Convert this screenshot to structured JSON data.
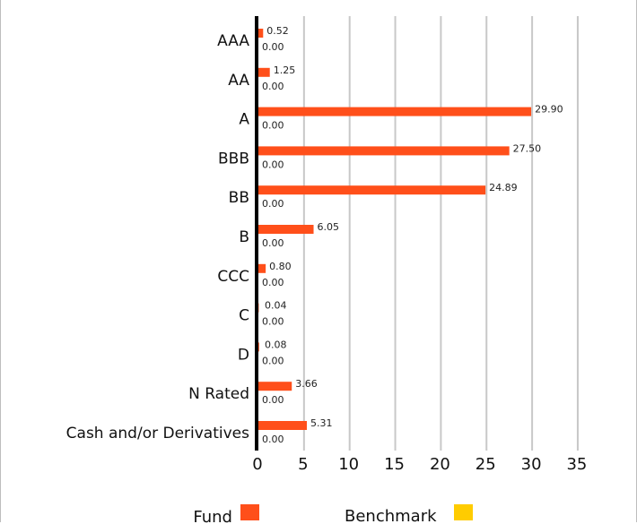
{
  "chart_data": {
    "type": "bar",
    "orientation": "horizontal",
    "title": "",
    "xlabel": "",
    "ylabel": "",
    "categories": [
      "AAA",
      "AA",
      "A",
      "BBB",
      "BB",
      "B",
      "CCC",
      "C",
      "D",
      "N Rated",
      "Cash and/or Derivatives"
    ],
    "series": [
      {
        "name": "Fund",
        "color": "#ff4f1a",
        "values": [
          0.52,
          1.25,
          29.9,
          27.5,
          24.89,
          6.05,
          0.8,
          0.04,
          0.08,
          3.66,
          5.31
        ],
        "labels": [
          "0.52",
          "1.25",
          "29.90",
          "27.50",
          "24.89",
          "6.05",
          "0.80",
          "0.04",
          "0.08",
          "3.66",
          "5.31"
        ]
      },
      {
        "name": "Benchmark",
        "color": "#ffcc00",
        "values": [
          0,
          0,
          0,
          0,
          0,
          0,
          0,
          0,
          0,
          0,
          0
        ],
        "labels": [
          "0.00",
          "0.00",
          "0.00",
          "0.00",
          "0.00",
          "0.00",
          "0.00",
          "0.00",
          "0.00",
          "0.00",
          "0.00"
        ]
      }
    ],
    "xlim": [
      0,
      35
    ],
    "xticks": [
      0,
      5,
      10,
      15,
      20,
      25,
      30,
      35
    ],
    "grid": "vertical",
    "legend": "bottom"
  }
}
